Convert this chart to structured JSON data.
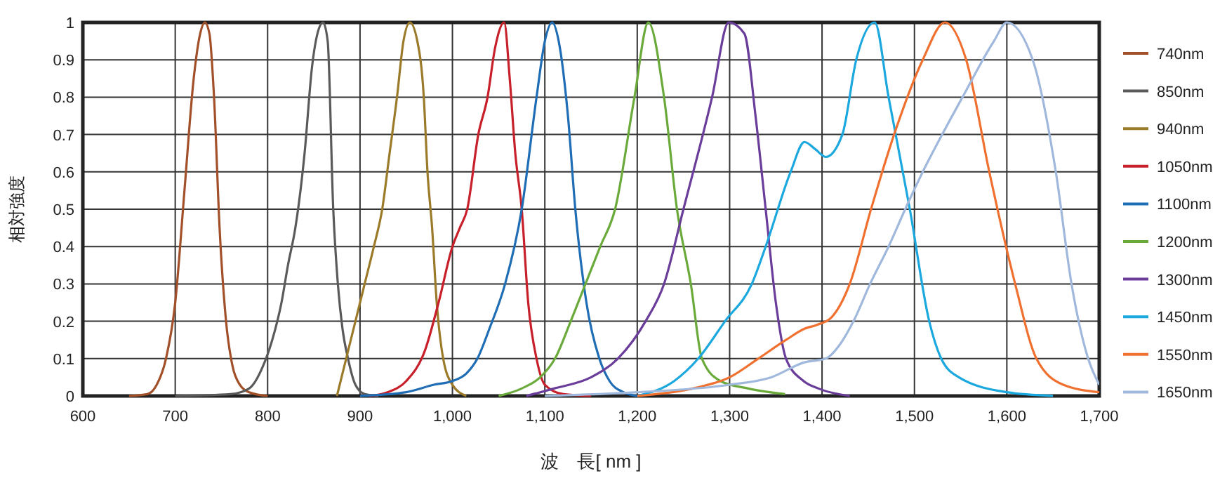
{
  "chart_data": {
    "type": "line",
    "xlabel": "波　長[ nm ]",
    "ylabel": "相対強度",
    "xlim": [
      600,
      1700
    ],
    "ylim": [
      0,
      1
    ],
    "xticks": [
      600,
      700,
      800,
      900,
      {
        "value": 1000,
        "label": "1,000"
      },
      {
        "value": 1100,
        "label": "1,100"
      },
      {
        "value": 1200,
        "label": "1,200"
      },
      {
        "value": 1300,
        "label": "1,300"
      },
      {
        "value": 1400,
        "label": "1,400"
      },
      {
        "value": 1500,
        "label": "1,500"
      },
      {
        "value": 1600,
        "label": "1,600"
      },
      {
        "value": 1700,
        "label": "1,700"
      }
    ],
    "yticks": [
      0,
      0.1,
      0.2,
      0.3,
      0.4,
      0.5,
      0.6,
      0.7,
      0.8,
      0.9,
      1
    ],
    "grid": true,
    "legend": "right",
    "marker": "none",
    "line_style": "solid",
    "series": [
      {
        "name": "740nm",
        "color": "#a2502a",
        "x": [
          650,
          670,
          680,
          690,
          700,
          710,
          720,
          727,
          732,
          737,
          742,
          748,
          755,
          762,
          770,
          780,
          800
        ],
        "values": [
          0,
          0.005,
          0.03,
          0.1,
          0.25,
          0.55,
          0.85,
          0.97,
          1,
          0.97,
          0.8,
          0.45,
          0.2,
          0.08,
          0.03,
          0.01,
          0
        ]
      },
      {
        "name": "850nm",
        "color": "#5a5a5a",
        "x": [
          700,
          760,
          780,
          795,
          805,
          815,
          822,
          830,
          840,
          848,
          855,
          860,
          865,
          871,
          876,
          881,
          887,
          895,
          905,
          920
        ],
        "values": [
          0,
          0.005,
          0.02,
          0.08,
          0.15,
          0.25,
          0.35,
          0.45,
          0.65,
          0.88,
          0.98,
          1,
          0.95,
          0.5,
          0.3,
          0.18,
          0.1,
          0.03,
          0.005,
          0
        ]
      },
      {
        "name": "940nm",
        "color": "#9b7a2a",
        "x": [
          875,
          885,
          895,
          905,
          915,
          924,
          932,
          940,
          947,
          954,
          962,
          969,
          973,
          978,
          983,
          990,
          1000,
          1015
        ],
        "values": [
          0,
          0.1,
          0.2,
          0.3,
          0.4,
          0.5,
          0.65,
          0.8,
          0.95,
          1,
          0.95,
          0.8,
          0.6,
          0.45,
          0.25,
          0.1,
          0.03,
          0
        ]
      },
      {
        "name": "1050nm",
        "color": "#c8202a",
        "x": [
          910,
          930,
          950,
          970,
          985,
          1000,
          1008,
          1016,
          1028,
          1038,
          1046,
          1056,
          1062,
          1068,
          1075,
          1082,
          1091,
          1100,
          1120,
          1150
        ],
        "values": [
          0,
          0.01,
          0.04,
          0.12,
          0.25,
          0.4,
          0.45,
          0.5,
          0.7,
          0.8,
          0.93,
          1,
          0.85,
          0.65,
          0.5,
          0.25,
          0.1,
          0.03,
          0.005,
          0
        ]
      },
      {
        "name": "1100nm",
        "color": "#1f6db5",
        "x": [
          900,
          950,
          980,
          1000,
          1015,
          1027,
          1040,
          1057,
          1075,
          1091,
          1100,
          1108,
          1115,
          1125,
          1133,
          1145,
          1159,
          1170,
          1185,
          1200
        ],
        "values": [
          0,
          0.01,
          0.03,
          0.04,
          0.06,
          0.1,
          0.18,
          0.3,
          0.5,
          0.8,
          0.95,
          1,
          0.95,
          0.75,
          0.5,
          0.25,
          0.1,
          0.04,
          0.01,
          0
        ]
      },
      {
        "name": "1200nm",
        "color": "#6aaa3a",
        "x": [
          1050,
          1075,
          1095,
          1111,
          1128,
          1144,
          1160,
          1176,
          1197,
          1212,
          1229,
          1243,
          1258,
          1270,
          1290,
          1320,
          1360
        ],
        "values": [
          0,
          0.02,
          0.05,
          0.1,
          0.2,
          0.3,
          0.4,
          0.5,
          0.8,
          1,
          0.8,
          0.5,
          0.3,
          0.1,
          0.04,
          0.02,
          0.005
        ]
      },
      {
        "name": "1300nm",
        "color": "#6a3d9a",
        "x": [
          1080,
          1110,
          1150,
          1179,
          1209,
          1229,
          1250,
          1281,
          1299,
          1316,
          1328,
          1339,
          1350,
          1361,
          1380,
          1396,
          1430
        ],
        "values": [
          0,
          0.02,
          0.05,
          0.1,
          0.2,
          0.3,
          0.5,
          0.8,
          1,
          0.97,
          0.75,
          0.5,
          0.25,
          0.1,
          0.04,
          0.02,
          0
        ]
      },
      {
        "name": "1450nm",
        "color": "#1ba8df",
        "x": [
          1200,
          1240,
          1266,
          1295,
          1324,
          1339,
          1366,
          1381,
          1393,
          1404,
          1422,
          1437,
          1457,
          1472,
          1495,
          1516,
          1529,
          1548,
          1600,
          1650
        ],
        "values": [
          0,
          0.04,
          0.1,
          0.2,
          0.3,
          0.4,
          0.6,
          0.68,
          0.66,
          0.64,
          0.7,
          0.9,
          1,
          0.8,
          0.5,
          0.2,
          0.1,
          0.05,
          0.01,
          0
        ]
      },
      {
        "name": "1550nm",
        "color": "#f07030",
        "x": [
          1200,
          1260,
          1300,
          1331,
          1361,
          1381,
          1394,
          1410,
          1430,
          1453,
          1478,
          1509,
          1533,
          1556,
          1581,
          1609,
          1632,
          1661,
          1700
        ],
        "values": [
          0,
          0.02,
          0.05,
          0.1,
          0.15,
          0.18,
          0.19,
          0.21,
          0.3,
          0.5,
          0.7,
          0.9,
          1,
          0.9,
          0.6,
          0.3,
          0.1,
          0.03,
          0.01
        ]
      },
      {
        "name": "1650nm",
        "color": "#a0b8dc",
        "x": [
          1100,
          1200,
          1300,
          1345,
          1381,
          1404,
          1420,
          1434,
          1452,
          1472,
          1490,
          1509,
          1530,
          1552,
          1586,
          1600,
          1628,
          1653,
          1670,
          1688,
          1700
        ],
        "values": [
          0,
          0.01,
          0.03,
          0.05,
          0.09,
          0.1,
          0.14,
          0.2,
          0.3,
          0.4,
          0.5,
          0.6,
          0.7,
          0.8,
          0.95,
          1,
          0.9,
          0.6,
          0.3,
          0.1,
          0.03
        ]
      }
    ]
  }
}
